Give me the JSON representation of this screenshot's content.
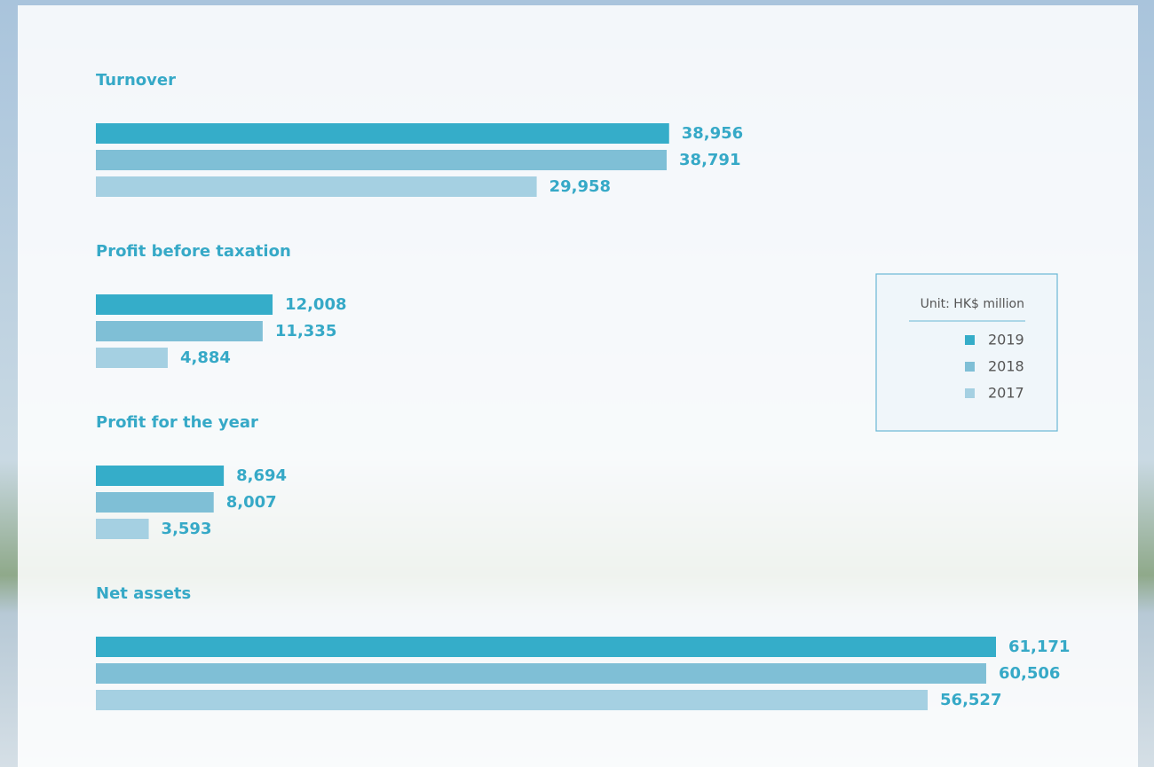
{
  "chart_data": {
    "type": "bar",
    "orientation": "horizontal",
    "categories": [
      "Turnover",
      "Profit before taxation",
      "Profit for the year",
      "Net assets"
    ],
    "series": [
      {
        "name": "2019",
        "color": "#35adc9",
        "values": [
          38956,
          12008,
          8694,
          61171
        ],
        "value_labels": [
          "38,956",
          "12,008",
          "8,694",
          "61,171"
        ]
      },
      {
        "name": "2018",
        "color": "#7fbfd6",
        "values": [
          38791,
          11335,
          8007,
          60506
        ],
        "value_labels": [
          "38,791",
          "11,335",
          "8,007",
          "60,506"
        ]
      },
      {
        "name": "2017",
        "color": "#a5d0e2",
        "values": [
          29958,
          4884,
          3593,
          56527
        ],
        "value_labels": [
          "29,958",
          "4,884",
          "3,593",
          "56,527"
        ]
      }
    ],
    "legend_title": "Unit: HK$ million",
    "legend": "right"
  }
}
